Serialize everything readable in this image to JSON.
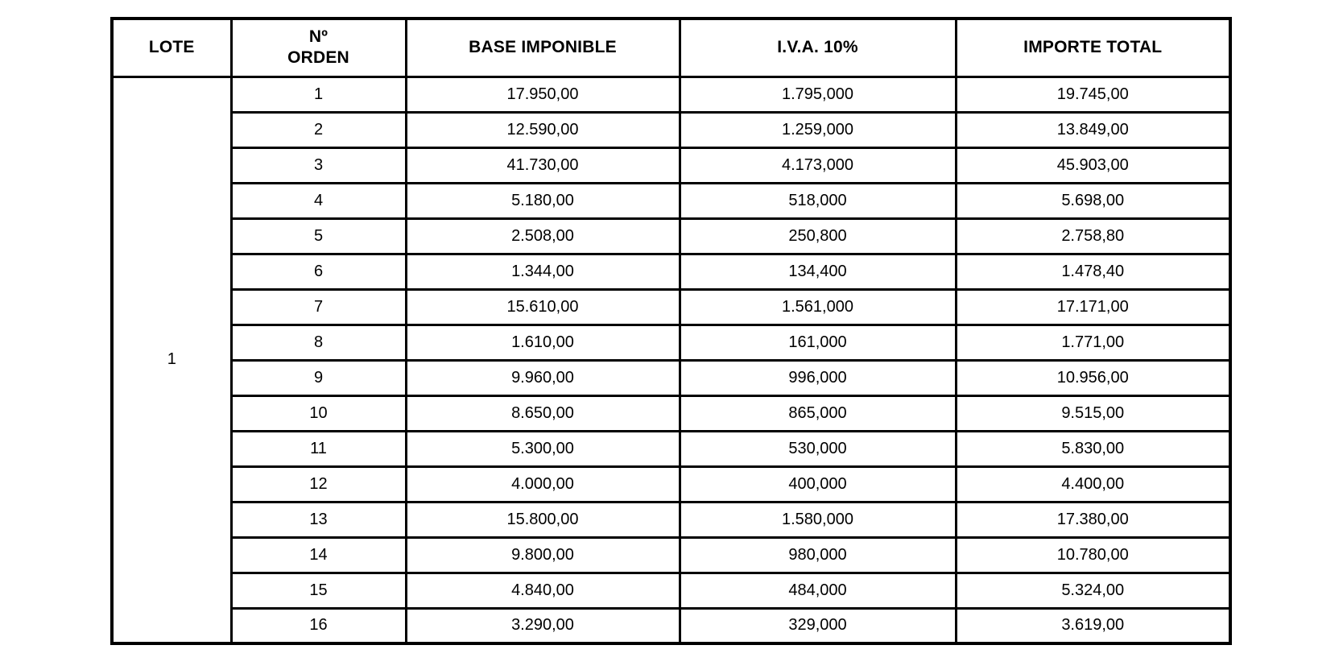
{
  "table": {
    "headers": [
      "LOTE",
      "Nº\nORDEN",
      "BASE IMPONIBLE",
      "I.V.A. 10%",
      "IMPORTE TOTAL"
    ],
    "lote": "1",
    "rows": [
      {
        "orden": "1",
        "base": "17.950,00",
        "iva": "1.795,000",
        "total": "19.745,00"
      },
      {
        "orden": "2",
        "base": "12.590,00",
        "iva": "1.259,000",
        "total": "13.849,00"
      },
      {
        "orden": "3",
        "base": "41.730,00",
        "iva": "4.173,000",
        "total": "45.903,00"
      },
      {
        "orden": "4",
        "base": "5.180,00",
        "iva": "518,000",
        "total": "5.698,00"
      },
      {
        "orden": "5",
        "base": "2.508,00",
        "iva": "250,800",
        "total": "2.758,80"
      },
      {
        "orden": "6",
        "base": "1.344,00",
        "iva": "134,400",
        "total": "1.478,40"
      },
      {
        "orden": "7",
        "base": "15.610,00",
        "iva": "1.561,000",
        "total": "17.171,00"
      },
      {
        "orden": "8",
        "base": "1.610,00",
        "iva": "161,000",
        "total": "1.771,00"
      },
      {
        "orden": "9",
        "base": "9.960,00",
        "iva": "996,000",
        "total": "10.956,00"
      },
      {
        "orden": "10",
        "base": "8.650,00",
        "iva": "865,000",
        "total": "9.515,00"
      },
      {
        "orden": "11",
        "base": "5.300,00",
        "iva": "530,000",
        "total": "5.830,00"
      },
      {
        "orden": "12",
        "base": "4.000,00",
        "iva": "400,000",
        "total": "4.400,00"
      },
      {
        "orden": "13",
        "base": "15.800,00",
        "iva": "1.580,000",
        "total": "17.380,00"
      },
      {
        "orden": "14",
        "base": "9.800,00",
        "iva": "980,000",
        "total": "10.780,00"
      },
      {
        "orden": "15",
        "base": "4.840,00",
        "iva": "484,000",
        "total": "5.324,00"
      },
      {
        "orden": "16",
        "base": "3.290,00",
        "iva": "329,000",
        "total": "3.619,00"
      }
    ],
    "colors": {
      "border": "#000000",
      "background": "#ffffff",
      "text": "#000000"
    }
  }
}
